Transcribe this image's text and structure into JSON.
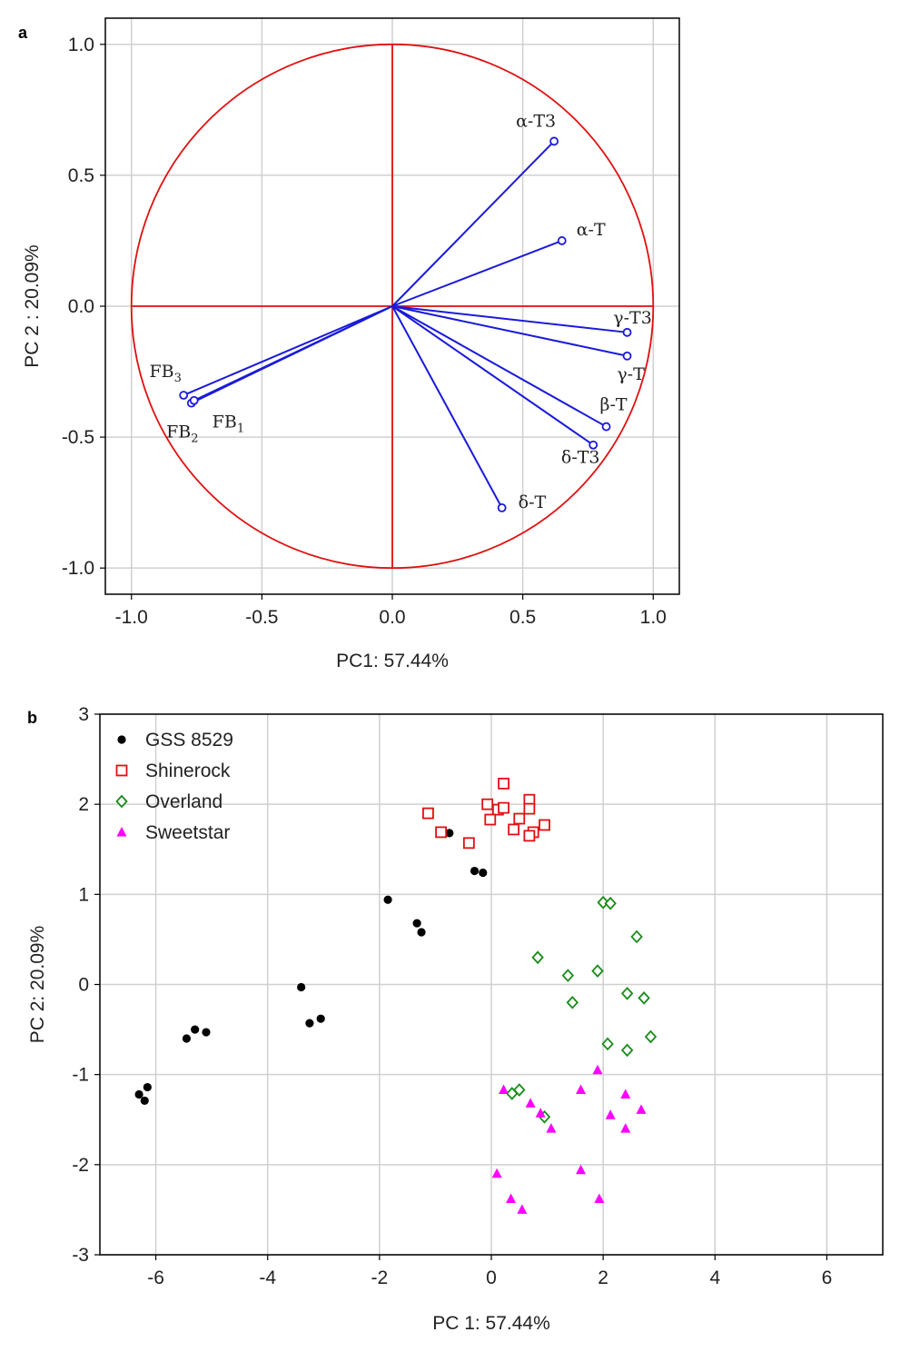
{
  "chart_data": [
    {
      "panel_label": "a",
      "type": "scatter",
      "subtype": "pca-loading-plot",
      "title": "",
      "xlabel": "PC1: 57.44%",
      "ylabel": "PC 2 : 20.09%",
      "xlim": [
        -1.1,
        1.1
      ],
      "ylim": [
        -1.1,
        1.1
      ],
      "xticks": [
        -1.0,
        -0.5,
        0.0,
        0.5,
        1.0
      ],
      "xtick_labels": [
        "-1.0",
        "-0.5",
        "0.0",
        "0.5",
        "1.0"
      ],
      "yticks": [
        -1.0,
        -0.5,
        0.0,
        0.5,
        1.0
      ],
      "ytick_labels": [
        "-1.0",
        "-0.5",
        "0.0",
        "0.5",
        "1.0"
      ],
      "grid": true,
      "unit_circle_radius": 1.0,
      "colors": {
        "vectors": "#1a1adb",
        "circle": "#e01010",
        "grid": "#d0d0d0"
      },
      "loadings": [
        {
          "name": "α-T3",
          "x": 0.62,
          "y": 0.63
        },
        {
          "name": "α-T",
          "x": 0.65,
          "y": 0.25
        },
        {
          "name": "γ-T3",
          "x": 0.9,
          "y": -0.1
        },
        {
          "name": "γ-T",
          "x": 0.9,
          "y": -0.19
        },
        {
          "name": "β-T",
          "x": 0.82,
          "y": -0.46
        },
        {
          "name": "δ-T3",
          "x": 0.77,
          "y": -0.53
        },
        {
          "name": "δ-T",
          "x": 0.42,
          "y": -0.77
        },
        {
          "name": "FB",
          "sub": "3",
          "x": -0.8,
          "y": -0.34
        },
        {
          "name": "FB",
          "sub": "2",
          "x": -0.77,
          "y": -0.37
        },
        {
          "name": "FB",
          "sub": "1",
          "x": -0.76,
          "y": -0.36
        }
      ]
    },
    {
      "panel_label": "b",
      "type": "scatter",
      "subtype": "pca-score-plot",
      "title": "",
      "xlabel": "PC 1: 57.44%",
      "ylabel": "PC 2: 20.09%",
      "xlim": [
        -7,
        7
      ],
      "ylim": [
        -3,
        3
      ],
      "xticks": [
        -6,
        -4,
        -2,
        0,
        2,
        4,
        6
      ],
      "xtick_labels": [
        "-6",
        "-4",
        "-2",
        "0",
        "2",
        "4",
        "6"
      ],
      "yticks": [
        -3,
        -2,
        -1,
        0,
        1,
        2,
        3
      ],
      "ytick_labels": [
        "-3",
        "-2",
        "-1",
        "0",
        "1",
        "2",
        "3"
      ],
      "grid": true,
      "legend": "top-left",
      "series": [
        {
          "name": "GSS 8529",
          "marker": "circle",
          "color": "#000000",
          "points": [
            [
              -0.75,
              1.68
            ],
            [
              -0.3,
              1.26
            ],
            [
              -0.15,
              1.24
            ],
            [
              -1.85,
              0.94
            ],
            [
              -1.33,
              0.68
            ],
            [
              -1.25,
              0.58
            ],
            [
              -3.4,
              -0.03
            ],
            [
              -3.25,
              -0.43
            ],
            [
              -3.05,
              -0.38
            ],
            [
              -5.45,
              -0.6
            ],
            [
              -5.3,
              -0.5
            ],
            [
              -5.1,
              -0.53
            ],
            [
              -6.3,
              -1.22
            ],
            [
              -6.15,
              -1.14
            ],
            [
              -6.2,
              -1.29
            ]
          ]
        },
        {
          "name": "Shinerock",
          "marker": "square",
          "color": "#e01010",
          "points": [
            [
              0.22,
              2.23
            ],
            [
              0.68,
              2.05
            ],
            [
              -0.07,
              2.0
            ],
            [
              0.12,
              1.94
            ],
            [
              0.22,
              1.96
            ],
            [
              0.68,
              1.95
            ],
            [
              -1.13,
              1.9
            ],
            [
              -0.02,
              1.83
            ],
            [
              0.5,
              1.84
            ],
            [
              0.95,
              1.77
            ],
            [
              0.4,
              1.72
            ],
            [
              -0.9,
              1.69
            ],
            [
              0.75,
              1.69
            ],
            [
              0.68,
              1.65
            ],
            [
              -0.4,
              1.57
            ]
          ]
        },
        {
          "name": "Overland",
          "marker": "diamond",
          "color": "#1a8c1a",
          "points": [
            [
              2.0,
              0.91
            ],
            [
              2.13,
              0.9
            ],
            [
              2.6,
              0.53
            ],
            [
              0.83,
              0.3
            ],
            [
              1.9,
              0.15
            ],
            [
              1.37,
              0.1
            ],
            [
              2.43,
              -0.1
            ],
            [
              2.73,
              -0.15
            ],
            [
              1.45,
              -0.2
            ],
            [
              2.85,
              -0.58
            ],
            [
              2.08,
              -0.66
            ],
            [
              2.43,
              -0.73
            ],
            [
              0.5,
              -1.17
            ],
            [
              0.37,
              -1.21
            ],
            [
              0.95,
              -1.47
            ]
          ]
        },
        {
          "name": "Sweetstar",
          "marker": "triangle",
          "color": "#ff00ff",
          "points": [
            [
              1.9,
              -0.95
            ],
            [
              0.22,
              -1.17
            ],
            [
              1.6,
              -1.17
            ],
            [
              2.4,
              -1.22
            ],
            [
              0.7,
              -1.32
            ],
            [
              2.68,
              -1.39
            ],
            [
              0.88,
              -1.43
            ],
            [
              2.13,
              -1.45
            ],
            [
              1.07,
              -1.6
            ],
            [
              2.4,
              -1.6
            ],
            [
              1.6,
              -2.06
            ],
            [
              0.1,
              -2.1
            ],
            [
              0.35,
              -2.38
            ],
            [
              1.93,
              -2.38
            ],
            [
              0.55,
              -2.5
            ]
          ]
        }
      ]
    }
  ]
}
